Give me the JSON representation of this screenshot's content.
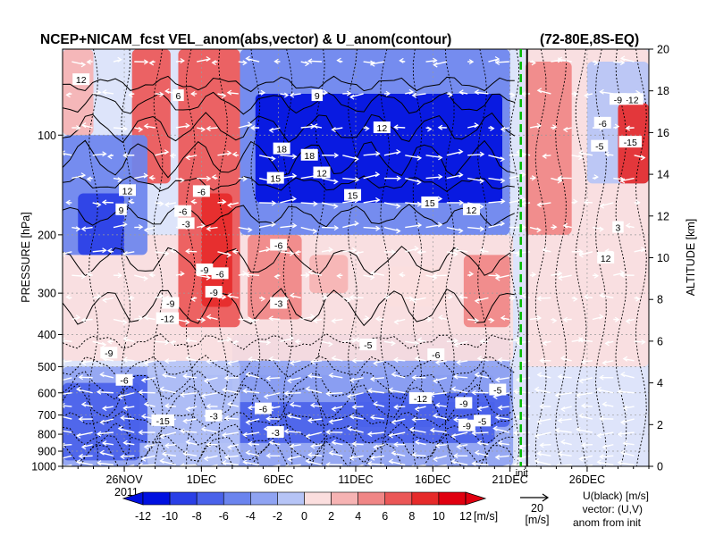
{
  "chart_data": {
    "type": "heatmap",
    "title": "NCEP+NICAM_fcst VEL_anom(abs,vector) & U_anom(contour)",
    "region": "(72-80E,8S-EQ)",
    "ylabel_left": "PRESSURE [hPa]",
    "ylabel_right": "ALTITUDE [km]",
    "pressure_ticks": [
      "100",
      "200",
      "300",
      "400",
      "500",
      "600",
      "700",
      "800",
      "900",
      "1000"
    ],
    "pressure_values": [
      100,
      200,
      300,
      400,
      500,
      600,
      700,
      800,
      900,
      1000
    ],
    "altitude_ticks": [
      "0",
      "2",
      "4",
      "6",
      "8",
      "10",
      "12",
      "14",
      "16",
      "18",
      "20"
    ],
    "altitude_values": [
      0,
      2,
      4,
      6,
      8,
      10,
      12,
      14,
      16,
      18,
      20
    ],
    "x_ticks": [
      {
        "label": "26NOV",
        "day": 26
      },
      {
        "label": "1DEC",
        "day": 31
      },
      {
        "label": "6DEC",
        "day": 36
      },
      {
        "label": "11DEC",
        "day": 41
      },
      {
        "label": "16DEC",
        "day": 46
      },
      {
        "label": "21DEC",
        "day": 51
      },
      {
        "label": "26DEC",
        "day": 56
      }
    ],
    "year_label": "2011",
    "x_range_days": [
      22,
      60
    ],
    "init_day": 51.7,
    "init_label": "init",
    "colorbar": {
      "labels": [
        "-12",
        "-10",
        "-8",
        "-6",
        "-4",
        "-2",
        "0",
        "2",
        "4",
        "6",
        "8",
        "10",
        "12"
      ],
      "values": [
        -12,
        -10,
        -8,
        -6,
        -4,
        -2,
        0,
        2,
        4,
        6,
        8,
        10,
        12
      ],
      "unit": "[m/s]",
      "colors": [
        "#0010e0",
        "#2a3fe6",
        "#4a62ea",
        "#6b84ee",
        "#8fa3f2",
        "#b6c4f6",
        "#dde4fa",
        "#fbdede",
        "#f6b3b3",
        "#f08686",
        "#eb5757",
        "#e62a2a",
        "#e00010"
      ]
    },
    "vector_ref": {
      "value": "20",
      "unit": "[m/s]"
    },
    "legend_text": [
      "U(black) [m/s]",
      "vector: (U,V)",
      "anom from init"
    ],
    "contour_labels": [
      {
        "v": "12",
        "day": 23.2,
        "p": 68
      },
      {
        "v": "6",
        "day": 29.5,
        "p": 76
      },
      {
        "v": "9",
        "day": 38.5,
        "p": 76
      },
      {
        "v": "18",
        "day": 38.0,
        "p": 115
      },
      {
        "v": "18",
        "day": 36.2,
        "p": 110
      },
      {
        "v": "12",
        "day": 42.7,
        "p": 95
      },
      {
        "v": "15",
        "day": 35.8,
        "p": 135
      },
      {
        "v": "12",
        "day": 38.8,
        "p": 130
      },
      {
        "v": "15",
        "day": 40.8,
        "p": 152
      },
      {
        "v": "15",
        "day": 45.8,
        "p": 160
      },
      {
        "v": "12",
        "day": 48.5,
        "p": 168
      },
      {
        "v": "12",
        "day": 26.2,
        "p": 147
      },
      {
        "v": "9",
        "day": 25.8,
        "p": 168
      },
      {
        "v": "-6",
        "day": 29.8,
        "p": 170
      },
      {
        "v": "-3",
        "day": 30.0,
        "p": 185
      },
      {
        "v": "-6",
        "day": 31.0,
        "p": 148
      },
      {
        "v": "-6",
        "day": 36.0,
        "p": 215
      },
      {
        "v": "-9",
        "day": 31.2,
        "p": 255
      },
      {
        "v": "-6",
        "day": 32.2,
        "p": 262
      },
      {
        "v": "-9",
        "day": 31.8,
        "p": 298
      },
      {
        "v": "-9",
        "day": 29.0,
        "p": 322
      },
      {
        "v": "-3",
        "day": 36.0,
        "p": 322
      },
      {
        "v": "-12",
        "day": 28.8,
        "p": 358
      },
      {
        "v": "-12",
        "day": 45.2,
        "p": 624
      },
      {
        "v": "-15",
        "day": 28.5,
        "p": 728
      },
      {
        "v": "-6",
        "day": 35.0,
        "p": 670
      },
      {
        "v": "-9",
        "day": 48.0,
        "p": 645
      },
      {
        "v": "-3",
        "day": 35.8,
        "p": 790
      },
      {
        "v": "-6",
        "day": 46.2,
        "p": 460
      },
      {
        "v": "-5",
        "day": 41.8,
        "p": 430
      },
      {
        "v": "-9",
        "day": 25.0,
        "p": 455
      },
      {
        "v": "-3",
        "day": 31.8,
        "p": 705
      },
      {
        "v": "-5",
        "day": 49.2,
        "p": 730
      },
      {
        "v": "-9",
        "day": 48.2,
        "p": 755
      },
      {
        "v": "-6",
        "day": 26.0,
        "p": 550
      },
      {
        "v": "-6",
        "day": 57.0,
        "p": 92
      },
      {
        "v": "-15",
        "day": 58.8,
        "p": 105
      },
      {
        "v": "-12",
        "day": 58.9,
        "p": 78
      },
      {
        "v": "-9",
        "day": 58.0,
        "p": 78
      },
      {
        "v": "-5",
        "day": 56.8,
        "p": 108
      },
      {
        "v": "3",
        "day": 58.0,
        "p": 190
      },
      {
        "v": "12",
        "day": 57.2,
        "p": 235
      },
      {
        "v": "-5",
        "day": 50.2,
        "p": 588
      }
    ]
  },
  "field": {
    "blobs": [
      {
        "d0": 22,
        "d1": 51.2,
        "p0": 500,
        "p1": 1000,
        "v": -4
      },
      {
        "d0": 26,
        "d1": 50,
        "p0": 530,
        "p1": 850,
        "v": -7
      },
      {
        "d0": 22,
        "d1": 27,
        "p0": 560,
        "p1": 960,
        "v": -8
      },
      {
        "d0": 33,
        "d1": 51,
        "p0": 400,
        "p1": 640,
        "v": -3
      },
      {
        "d0": 41,
        "d1": 51,
        "p0": 600,
        "p1": 760,
        "v": -7
      },
      {
        "d0": 27.5,
        "d1": 33.5,
        "p0": 480,
        "p1": 1000,
        "v": -2
      },
      {
        "d0": 22,
        "d1": 51.2,
        "p0": 200,
        "p1": 480,
        "v": 2
      },
      {
        "d0": 29.5,
        "d1": 33.5,
        "p0": 55,
        "p1": 380,
        "v": 8
      },
      {
        "d0": 31,
        "d1": 33,
        "p0": 150,
        "p1": 330,
        "v": 11
      },
      {
        "d0": 26.5,
        "d1": 29,
        "p0": 55,
        "p1": 140,
        "v": 8
      },
      {
        "d0": 34,
        "d1": 37.5,
        "p0": 200,
        "p1": 360,
        "v": 6
      },
      {
        "d0": 48,
        "d1": 51,
        "p0": 230,
        "p1": 380,
        "v": 6
      },
      {
        "d0": 38,
        "d1": 40.5,
        "p0": 230,
        "p1": 300,
        "v": 4
      },
      {
        "d0": 43,
        "d1": 47,
        "p0": 250,
        "p1": 330,
        "v": 3
      },
      {
        "d0": 33.5,
        "d1": 51,
        "p0": 55,
        "p1": 200,
        "v": -6
      },
      {
        "d0": 34.5,
        "d1": 50.5,
        "p0": 75,
        "p1": 160,
        "v": -12
      },
      {
        "d0": 22,
        "d1": 27.5,
        "p0": 100,
        "p1": 230,
        "v": -5
      },
      {
        "d0": 23,
        "d1": 26,
        "p0": 150,
        "p1": 230,
        "v": -9
      },
      {
        "d0": 22,
        "d1": 24,
        "p0": 55,
        "p1": 100,
        "v": 4
      },
      {
        "d0": 52,
        "d1": 60,
        "p0": 55,
        "p1": 500,
        "v": 2
      },
      {
        "d0": 56,
        "d1": 60,
        "p0": 60,
        "p1": 140,
        "v": -2
      },
      {
        "d0": 58,
        "d1": 60,
        "p0": 80,
        "p1": 140,
        "v": 11
      },
      {
        "d0": 52,
        "d1": 55,
        "p0": 60,
        "p1": 200,
        "v": 6
      },
      {
        "d0": 52,
        "d1": 60,
        "p0": 500,
        "p1": 1000,
        "v": 1
      }
    ]
  }
}
